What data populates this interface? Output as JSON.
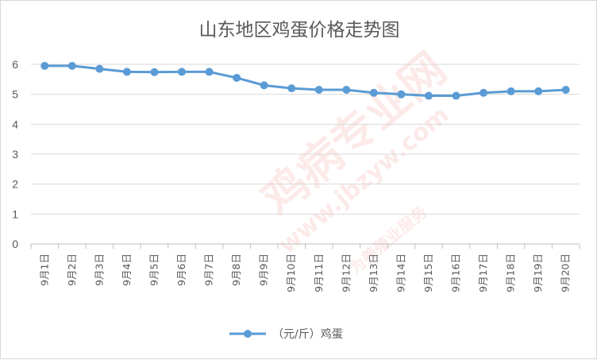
{
  "chart_data": {
    "type": "line",
    "title": "山东地区鸡蛋价格走势图",
    "categories": [
      "9月1日",
      "9月2日",
      "9月3日",
      "9月4日",
      "9月5日",
      "9月6日",
      "9月7日",
      "9月8日",
      "9月9日",
      "9月10日",
      "9月11日",
      "9月12日",
      "9月13日",
      "9月14日",
      "9月15日",
      "9月16日",
      "9月17日",
      "9月18日",
      "9月19日",
      "9月20日"
    ],
    "series": [
      {
        "name": "（元/斤）鸡蛋",
        "color": "#5b9bd5",
        "values": [
          5.95,
          5.95,
          5.85,
          5.75,
          5.74,
          5.75,
          5.75,
          5.55,
          5.3,
          5.2,
          5.15,
          5.15,
          5.05,
          5.0,
          4.95,
          4.95,
          5.05,
          5.1,
          5.1,
          5.15
        ]
      }
    ],
    "ylim": [
      0,
      6
    ],
    "yticks": [
      0,
      1,
      2,
      3,
      4,
      5,
      6
    ],
    "grid": true,
    "legend_position": "bottom",
    "xlabel": "",
    "ylabel": ""
  },
  "watermark": {
    "text_main": "鸡病专业网",
    "text_url": "www.jbzyw.com",
    "text_tagline": "为养殖业服务"
  }
}
